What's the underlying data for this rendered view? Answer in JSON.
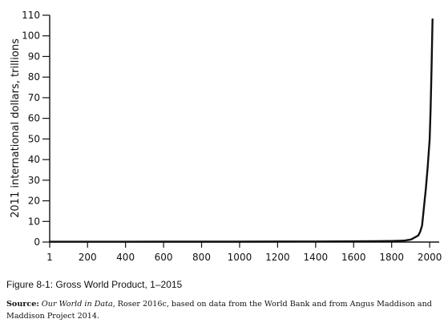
{
  "chart_data": {
    "type": "line",
    "title": "",
    "xlabel": "",
    "ylabel": "2011 international dollars, trillions",
    "ylim": [
      0,
      110
    ],
    "xlim": [
      1,
      2050
    ],
    "yticks": [
      0,
      10,
      20,
      30,
      40,
      50,
      60,
      70,
      80,
      90,
      100,
      110
    ],
    "xticks": [
      1,
      200,
      400,
      600,
      800,
      1000,
      1200,
      1400,
      1600,
      1800,
      2000
    ],
    "grid": false,
    "legend": "none",
    "line_color": "#111111",
    "series": [
      {
        "x": [
          1,
          200,
          400,
          600,
          800,
          1000,
          1200,
          1400,
          1500,
          1600,
          1700,
          1750,
          1800,
          1850,
          1870,
          1900,
          1913,
          1925,
          1940,
          1950,
          1960,
          1970,
          1980,
          1990,
          2000,
          2005,
          2010,
          2015
        ],
        "values": [
          0.18,
          0.18,
          0.18,
          0.19,
          0.19,
          0.2,
          0.24,
          0.26,
          0.3,
          0.36,
          0.4,
          0.45,
          0.5,
          0.65,
          0.75,
          1.2,
          1.8,
          2.4,
          3.2,
          5.0,
          8.0,
          17,
          26,
          37,
          50,
          65,
          85,
          108
        ]
      }
    ]
  },
  "figure": {
    "caption": "Figure 8-1: Gross World Product, 1–2015",
    "source_label": "Source:",
    "source_title": "Our World in Data",
    "source_text": ", Roser 2016c, based on data from the World Bank and from Angus Maddison and Maddison Project 2014."
  }
}
